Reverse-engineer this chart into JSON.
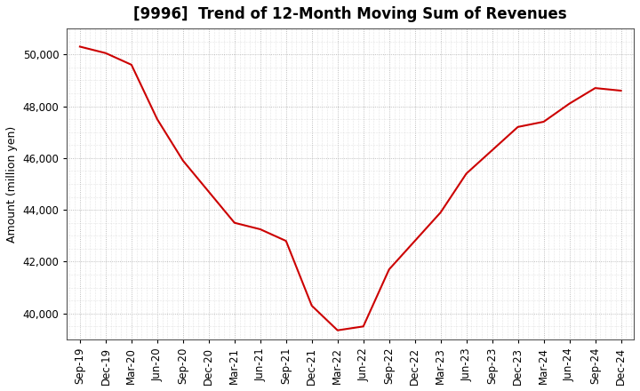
{
  "title": "[9996]  Trend of 12-Month Moving Sum of Revenues",
  "ylabel": "Amount (million yen)",
  "background_color": "#ffffff",
  "plot_bg_color": "#ffffff",
  "grid_color": "#aaaaaa",
  "line_color": "#cc0000",
  "x_labels": [
    "Sep-19",
    "Dec-19",
    "Mar-20",
    "Jun-20",
    "Sep-20",
    "Dec-20",
    "Mar-21",
    "Jun-21",
    "Sep-21",
    "Dec-21",
    "Mar-22",
    "Jun-22",
    "Sep-22",
    "Dec-22",
    "Mar-23",
    "Jun-23",
    "Sep-23",
    "Dec-23",
    "Mar-24",
    "Jun-24",
    "Sep-24",
    "Dec-24"
  ],
  "y_values": [
    50300,
    50050,
    49600,
    47500,
    45900,
    44700,
    43500,
    43250,
    42800,
    40300,
    39350,
    39500,
    41700,
    42800,
    43900,
    45400,
    46300,
    47200,
    47400,
    48100,
    48700,
    48600
  ],
  "ylim": [
    39000,
    51000
  ],
  "yticks": [
    40000,
    42000,
    44000,
    46000,
    48000,
    50000
  ],
  "title_fontsize": 12,
  "axis_fontsize": 9,
  "tick_fontsize": 8.5,
  "line_width": 1.5
}
